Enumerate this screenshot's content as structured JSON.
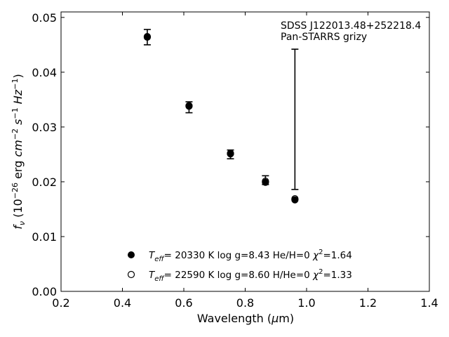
{
  "chart_data": {
    "type": "scatter",
    "xlabel": "Wavelength (μm)",
    "ylabel": "f_ν (10^-26 erg cm^-2 s^-1 Hz^-1)",
    "xlim": [
      0.2,
      1.4
    ],
    "ylim": [
      0.0,
      0.051
    ],
    "xticks": [
      "0.2",
      "0.4",
      "0.6",
      "0.8",
      "1.0",
      "1.2",
      "1.4"
    ],
    "yticks": [
      "0.00",
      "0.01",
      "0.02",
      "0.03",
      "0.04",
      "0.05"
    ],
    "annotations": [
      "SDSS J122013.48+252218.4",
      "Pan-STARRS grizy"
    ],
    "legend_position": "bottom-center",
    "observed": {
      "name": "Pan-STARRS grizy",
      "x": [
        0.481,
        0.617,
        0.752,
        0.866,
        0.962
      ],
      "y": [
        0.0464,
        0.0336,
        0.025,
        0.0203,
        0.0314
      ],
      "yerr": [
        0.0014,
        0.001,
        0.0008,
        0.0008,
        0.0128
      ]
    },
    "series": [
      {
        "name": "T_eff= 20330 K  log g=8.43  He/H=0  χ²=1.64",
        "marker": "filled-circle",
        "x": [
          0.481,
          0.617,
          0.752,
          0.866,
          0.962
        ],
        "y": [
          0.0464,
          0.0338,
          0.0251,
          0.0199,
          0.0167
        ]
      },
      {
        "name": "T_eff= 22590 K  log g=8.60  H/He=0  χ²=1.33",
        "marker": "open-circle",
        "x": [
          0.481,
          0.617,
          0.752,
          0.866,
          0.962
        ],
        "y": [
          0.0465,
          0.0339,
          0.0252,
          0.0201,
          0.0169
        ]
      }
    ]
  }
}
